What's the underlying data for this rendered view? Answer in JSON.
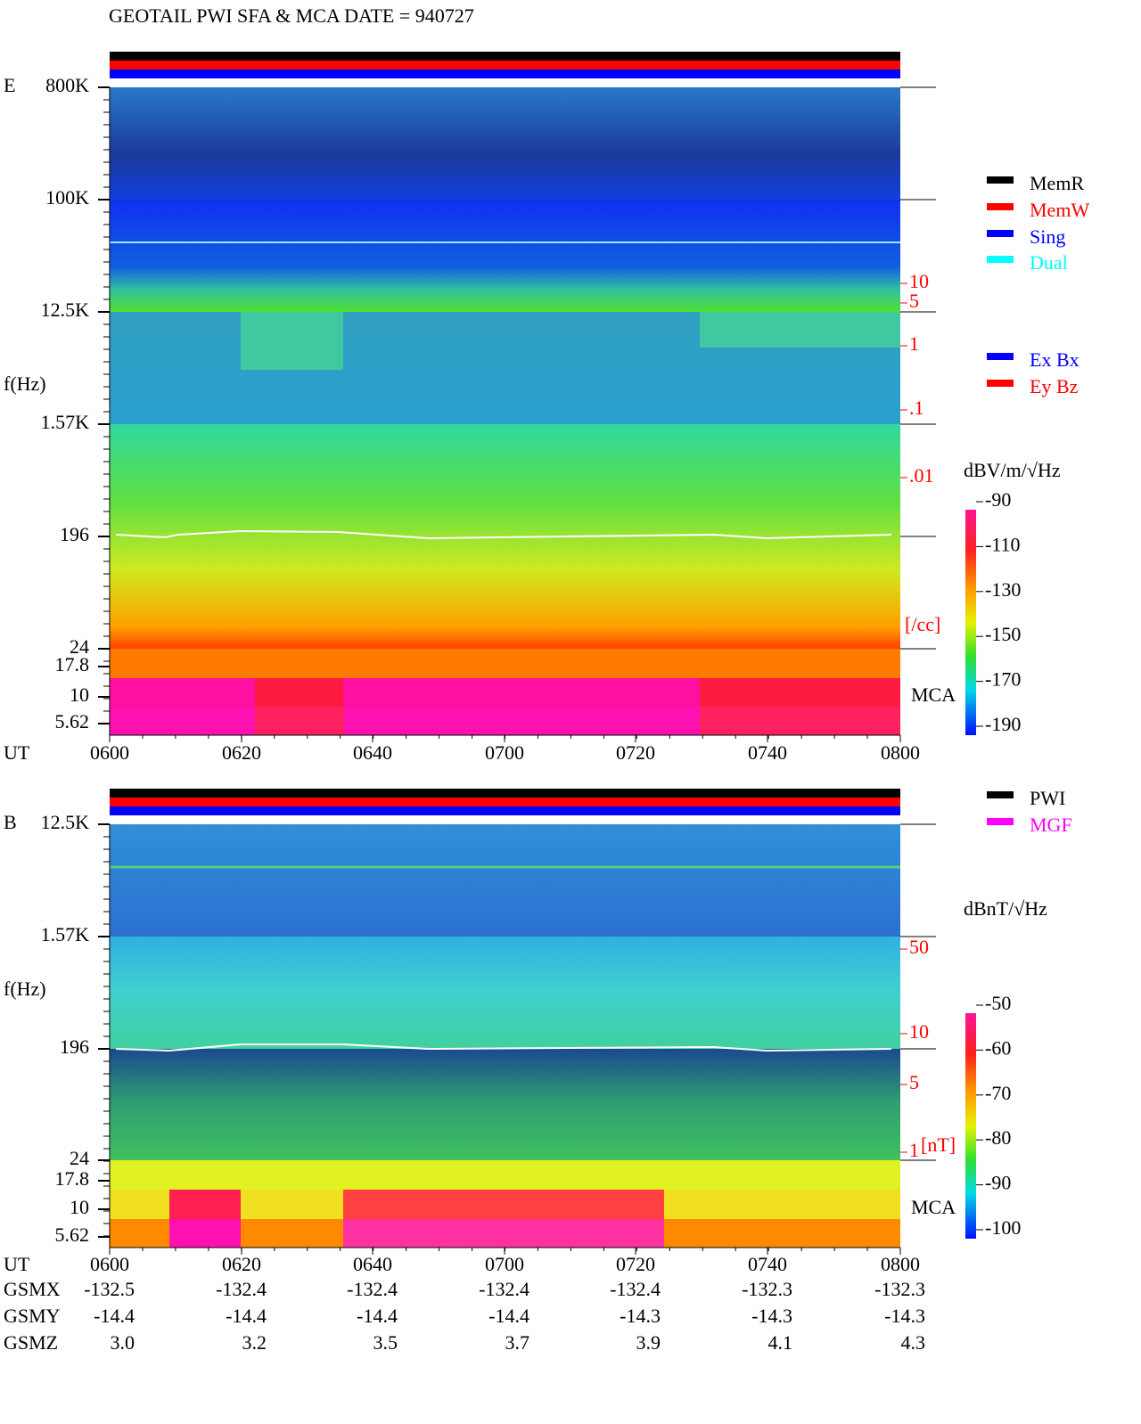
{
  "header": {
    "title": "GEOTAIL  PWI SFA & MCA   DATE = 940727"
  },
  "time_axis": {
    "label": "UT",
    "ticks": [
      "0600",
      "0620",
      "0640",
      "0700",
      "0720",
      "0740",
      "0800"
    ]
  },
  "panels": [
    {
      "label": "E",
      "y_axis_label": "f(Hz)",
      "freq_ticks": [
        "800K",
        "100K",
        "12.5K",
        "1.57K",
        "196",
        "24",
        "17.8",
        "10",
        "5.62"
      ],
      "density_ticks": [
        "10",
        "5",
        "1",
        ".1",
        ".01"
      ],
      "density_unit": "[/cc]",
      "mca_label": "MCA",
      "colorbar": {
        "unit": "dBV/m/√Hz",
        "ticks": [
          -90,
          -110,
          -130,
          -150,
          -170,
          -190
        ]
      },
      "legend": [
        {
          "name": "MemR",
          "color": "#000000"
        },
        {
          "name": "MemW",
          "color": "#ff0000"
        },
        {
          "name": "Sing",
          "color": "#0000ff"
        },
        {
          "name": "Dual",
          "color": "#00ffff"
        }
      ],
      "legend2": [
        {
          "name": "Ex Bx",
          "color": "#0000ff"
        },
        {
          "name": "Ey Bz",
          "color": "#ff0000"
        }
      ]
    },
    {
      "label": "B",
      "y_axis_label": "f(Hz)",
      "freq_ticks": [
        "12.5K",
        "1.57K",
        "196",
        "24",
        "17.8",
        "10",
        "5.62"
      ],
      "density_ticks": [
        "50",
        "10",
        "5",
        "1"
      ],
      "density_unit": "[nT]",
      "mca_label": "MCA",
      "colorbar": {
        "unit": "dBnT/√Hz",
        "ticks": [
          -50,
          -60,
          -70,
          -80,
          -90,
          -100
        ]
      },
      "legend": [
        {
          "name": "PWI",
          "color": "#000000"
        },
        {
          "name": "MGF",
          "color": "#ff00ff"
        }
      ],
      "legend2": []
    }
  ],
  "orbit": [
    {
      "name": "GSMX",
      "values": [
        "-132.5",
        "-132.4",
        "-132.4",
        "-132.4",
        "-132.4",
        "-132.3",
        "-132.3"
      ]
    },
    {
      "name": "GSMY",
      "values": [
        "-14.4",
        "-14.4",
        "-14.4",
        "-14.4",
        "-14.3",
        "-14.3",
        "-14.3"
      ]
    },
    {
      "name": "GSMZ",
      "values": [
        "3.0",
        "3.2",
        "3.5",
        "3.7",
        "3.9",
        "4.1",
        "4.3"
      ]
    }
  ]
}
